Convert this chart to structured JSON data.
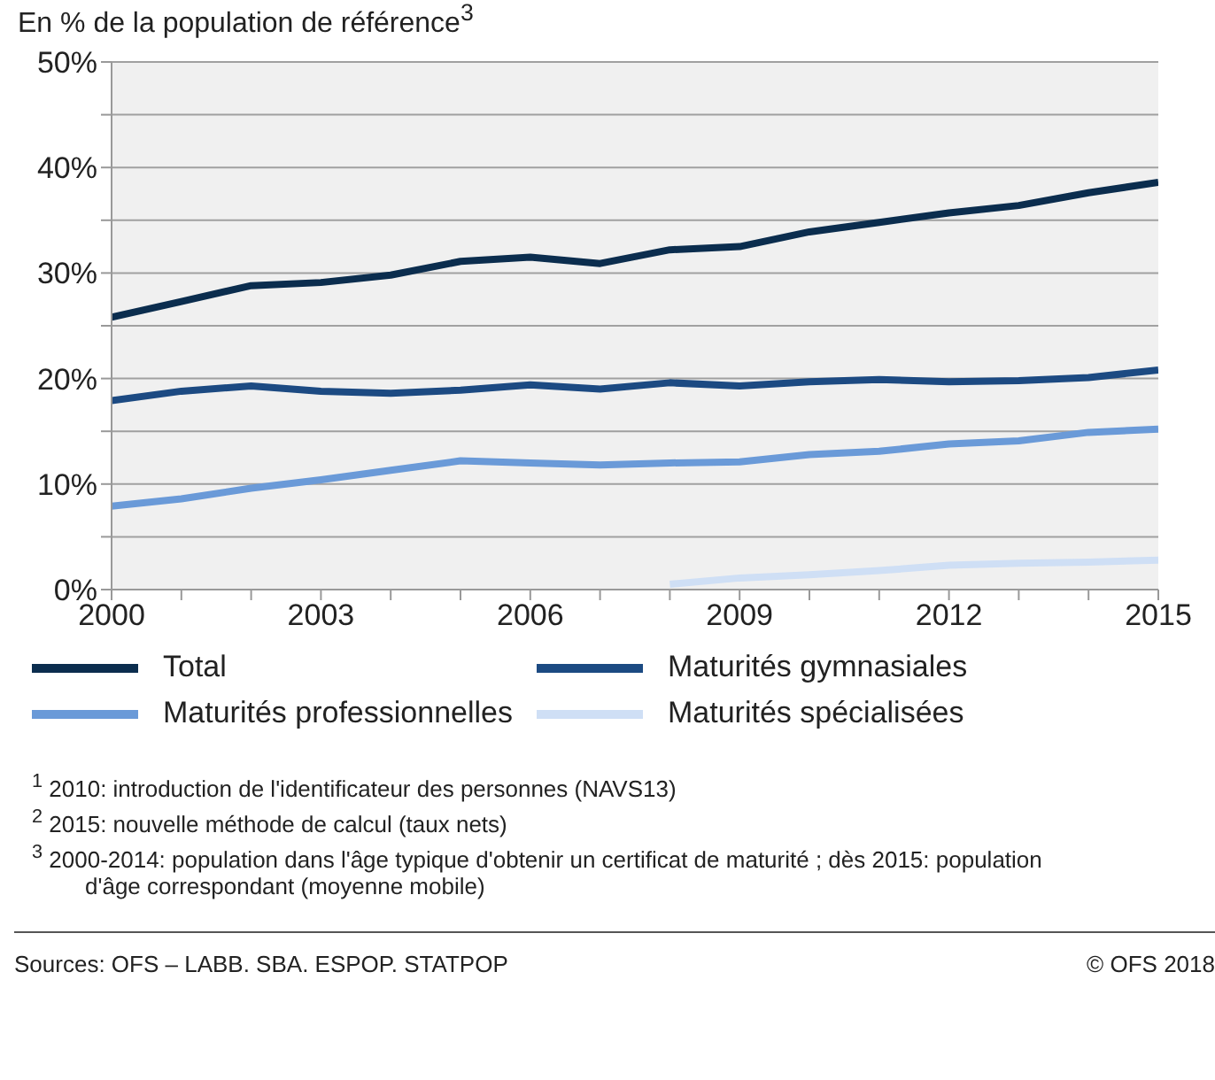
{
  "chart_data": {
    "type": "line",
    "title": "En % de la population de référence$^{3}$",
    "x": [
      2000,
      2001,
      2002,
      2003,
      2004,
      2005,
      2006,
      2007,
      2008,
      2009,
      2010,
      2011,
      2012,
      2013,
      2014,
      2015
    ],
    "series": [
      {
        "name": "Total",
        "color": "#0b2d4e",
        "values": [
          25.8,
          27.3,
          28.8,
          29.1,
          29.8,
          31.1,
          31.5,
          30.9,
          32.2,
          32.5,
          33.9,
          34.8,
          35.7,
          36.4,
          37.6,
          38.6
        ]
      },
      {
        "name": "Maturités gymnasiales",
        "color": "#1c4a82",
        "values": [
          17.9,
          18.8,
          19.3,
          18.8,
          18.6,
          18.9,
          19.4,
          19.0,
          19.6,
          19.3,
          19.7,
          19.9,
          19.7,
          19.8,
          20.1,
          20.8
        ]
      },
      {
        "name": "Maturités professionnelles",
        "color": "#6a9ad8",
        "values": [
          7.9,
          8.6,
          9.6,
          10.4,
          11.3,
          12.2,
          12.0,
          11.8,
          12.0,
          12.1,
          12.8,
          13.1,
          13.8,
          14.1,
          14.9,
          15.2
        ]
      },
      {
        "name": "Maturités spécialisées",
        "color": "#cfdff5",
        "values": [
          null,
          null,
          null,
          null,
          null,
          null,
          null,
          null,
          0.5,
          1.1,
          1.4,
          1.8,
          2.3,
          2.5,
          2.6,
          2.8
        ]
      }
    ],
    "xlim": [
      2000,
      2015
    ],
    "xticks": [
      2000,
      {
        "value": 2001,
        "label": null
      },
      {
        "value": 2002,
        "label": null
      },
      2003,
      {
        "value": 2004,
        "label": null
      },
      {
        "value": 2005,
        "label": null
      },
      2006,
      {
        "value": 2007,
        "label": null
      },
      {
        "value": 2008,
        "label": null
      },
      2009,
      {
        "value": 2010,
        "label": null
      },
      {
        "value": 2011,
        "label": null
      },
      2012,
      {
        "value": 2013,
        "label": null
      },
      {
        "value": 2014,
        "label": null
      },
      2015
    ],
    "ylim": [
      0,
      50
    ],
    "yticks": [
      {
        "value": 0,
        "label": "0%"
      },
      {
        "value": 5,
        "label": null
      },
      {
        "value": 10,
        "label": "10%"
      },
      {
        "value": 15,
        "label": null
      },
      {
        "value": 20,
        "label": "20%"
      },
      {
        "value": 25,
        "label": null
      },
      {
        "value": 30,
        "label": "30%"
      },
      {
        "value": 35,
        "label": null
      },
      {
        "value": 40,
        "label": "40%"
      },
      {
        "value": 45,
        "label": null
      },
      {
        "value": 50,
        "label": "50%"
      }
    ],
    "grid": "y",
    "legend": "bottom",
    "marker": "none",
    "line_style": "solid",
    "annotations": [
      "$^{1}$ 2010: introduction de l'identificateur des personnes (NAVS13)",
      "$^{2}$ 2015: nouvelle méthode de calcul (taux nets)",
      "$^{3}$ 2000-2014: population dans l'âge typique d'obtenir un certificat de maturité ; dès 2015: population d'âge correspondant (moyenne mobile)",
      "Sources: OFS – LABB. SBA. ESPOP. STATPOP",
      "© OFS 2018"
    ]
  }
}
